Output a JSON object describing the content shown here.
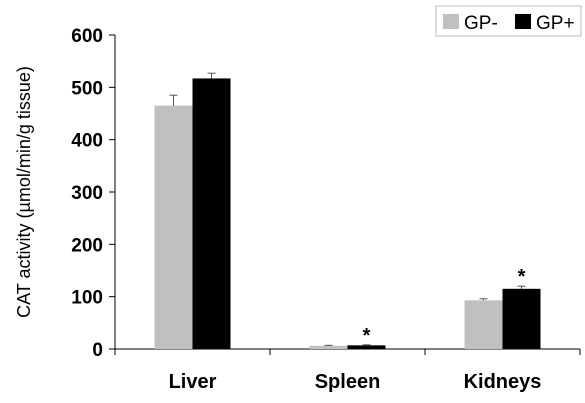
{
  "chart_data": {
    "type": "bar",
    "categories": [
      "Liver",
      "Spleen",
      "Kidneys"
    ],
    "ylabel": "CAT activity (µmol/min/g tissue)",
    "xlabel": "",
    "ylim": [
      0,
      600
    ],
    "yticks": [
      0,
      100,
      200,
      300,
      400,
      500,
      600
    ],
    "grid": false,
    "legend_position": "top-right",
    "series": [
      {
        "name": "GP-",
        "color": "#c0c0c0",
        "values": [
          465,
          6,
          93
        ],
        "errors": [
          20,
          1,
          3
        ]
      },
      {
        "name": "GP+",
        "color": "#000000",
        "values": [
          517,
          7,
          115
        ],
        "errors": [
          10,
          1,
          5
        ]
      }
    ],
    "significance": [
      {
        "category": "Spleen",
        "series": "GP+",
        "label": "*"
      },
      {
        "category": "Kidneys",
        "series": "GP+",
        "label": "*"
      }
    ]
  }
}
